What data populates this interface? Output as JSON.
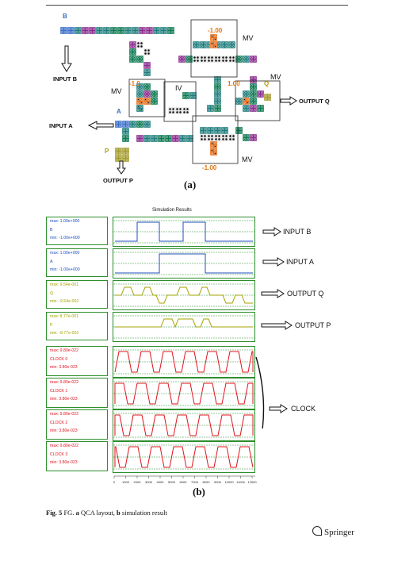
{
  "layout_labels": {
    "b": "B",
    "input_b": "INPUT B",
    "mv_top": "MV",
    "mv_top_value": "-1.00",
    "mv_left": "MV",
    "mv_left_value": "-1.0",
    "iv": "IV",
    "mv_right": "MV",
    "mv_right_value": "1.00",
    "q": "Q",
    "output_q": "OUTPUT Q",
    "a": "A",
    "input_a": "INPUT A",
    "p": "P",
    "output_p": "OUTPUT P",
    "mv_bottom": "MV",
    "mv_bottom_value": "-1.00",
    "sub_a": "(a)"
  },
  "simulation": {
    "title": "Simulation Results",
    "panels": [
      {
        "max": "max: 1.00e+000",
        "name": "B",
        "min": "min: -1.00e+000",
        "color": "#1f4fbf"
      },
      {
        "max": "max: 1.00e+000",
        "name": "A",
        "min": "min: -1.00e+000",
        "color": "#1f4fbf"
      },
      {
        "max": "max: 9.54e-001",
        "name": "Q",
        "min": "min: -9.54e-001",
        "color": "#a3a300"
      },
      {
        "max": "max: 8.77e-001",
        "name": "P",
        "min": "min: -8.77e-001",
        "color": "#a3a300"
      },
      {
        "max": "max: 9.80e-022",
        "name": "CLOCK 0",
        "min": "min: 3.80e-023",
        "color": "#e0141e"
      },
      {
        "max": "max: 9.80e-022",
        "name": "CLOCK 1",
        "min": "min: 3.80e-023",
        "color": "#e0141e"
      },
      {
        "max": "max: 9.80e-022",
        "name": "CLOCK 2",
        "min": "min: 3.80e-023",
        "color": "#e0141e"
      },
      {
        "max": "max: 9.80e-022",
        "name": "CLOCK 3",
        "min": "min: 3.80e-023",
        "color": "#e0141e"
      }
    ],
    "arrow_labels": {
      "input_b": "INPUT B",
      "input_a": "INPUT A",
      "output_q": "OUTPUT Q",
      "output_p": "OUTPUT P",
      "clock": "CLOCK"
    },
    "x_ticks": [
      "0",
      "1000",
      "2000",
      "3000",
      "4000",
      "5000",
      "6000",
      "7000",
      "8000",
      "9000",
      "10000",
      "11000",
      "12000"
    ],
    "sub_b": "(b)"
  },
  "caption": {
    "fig": "Fig. 5",
    "text": " FG. ",
    "a_bold": "a",
    "a_text": " QCA layout, ",
    "b_bold": "b",
    "b_text": " simulation result"
  },
  "publisher": "Springer"
}
